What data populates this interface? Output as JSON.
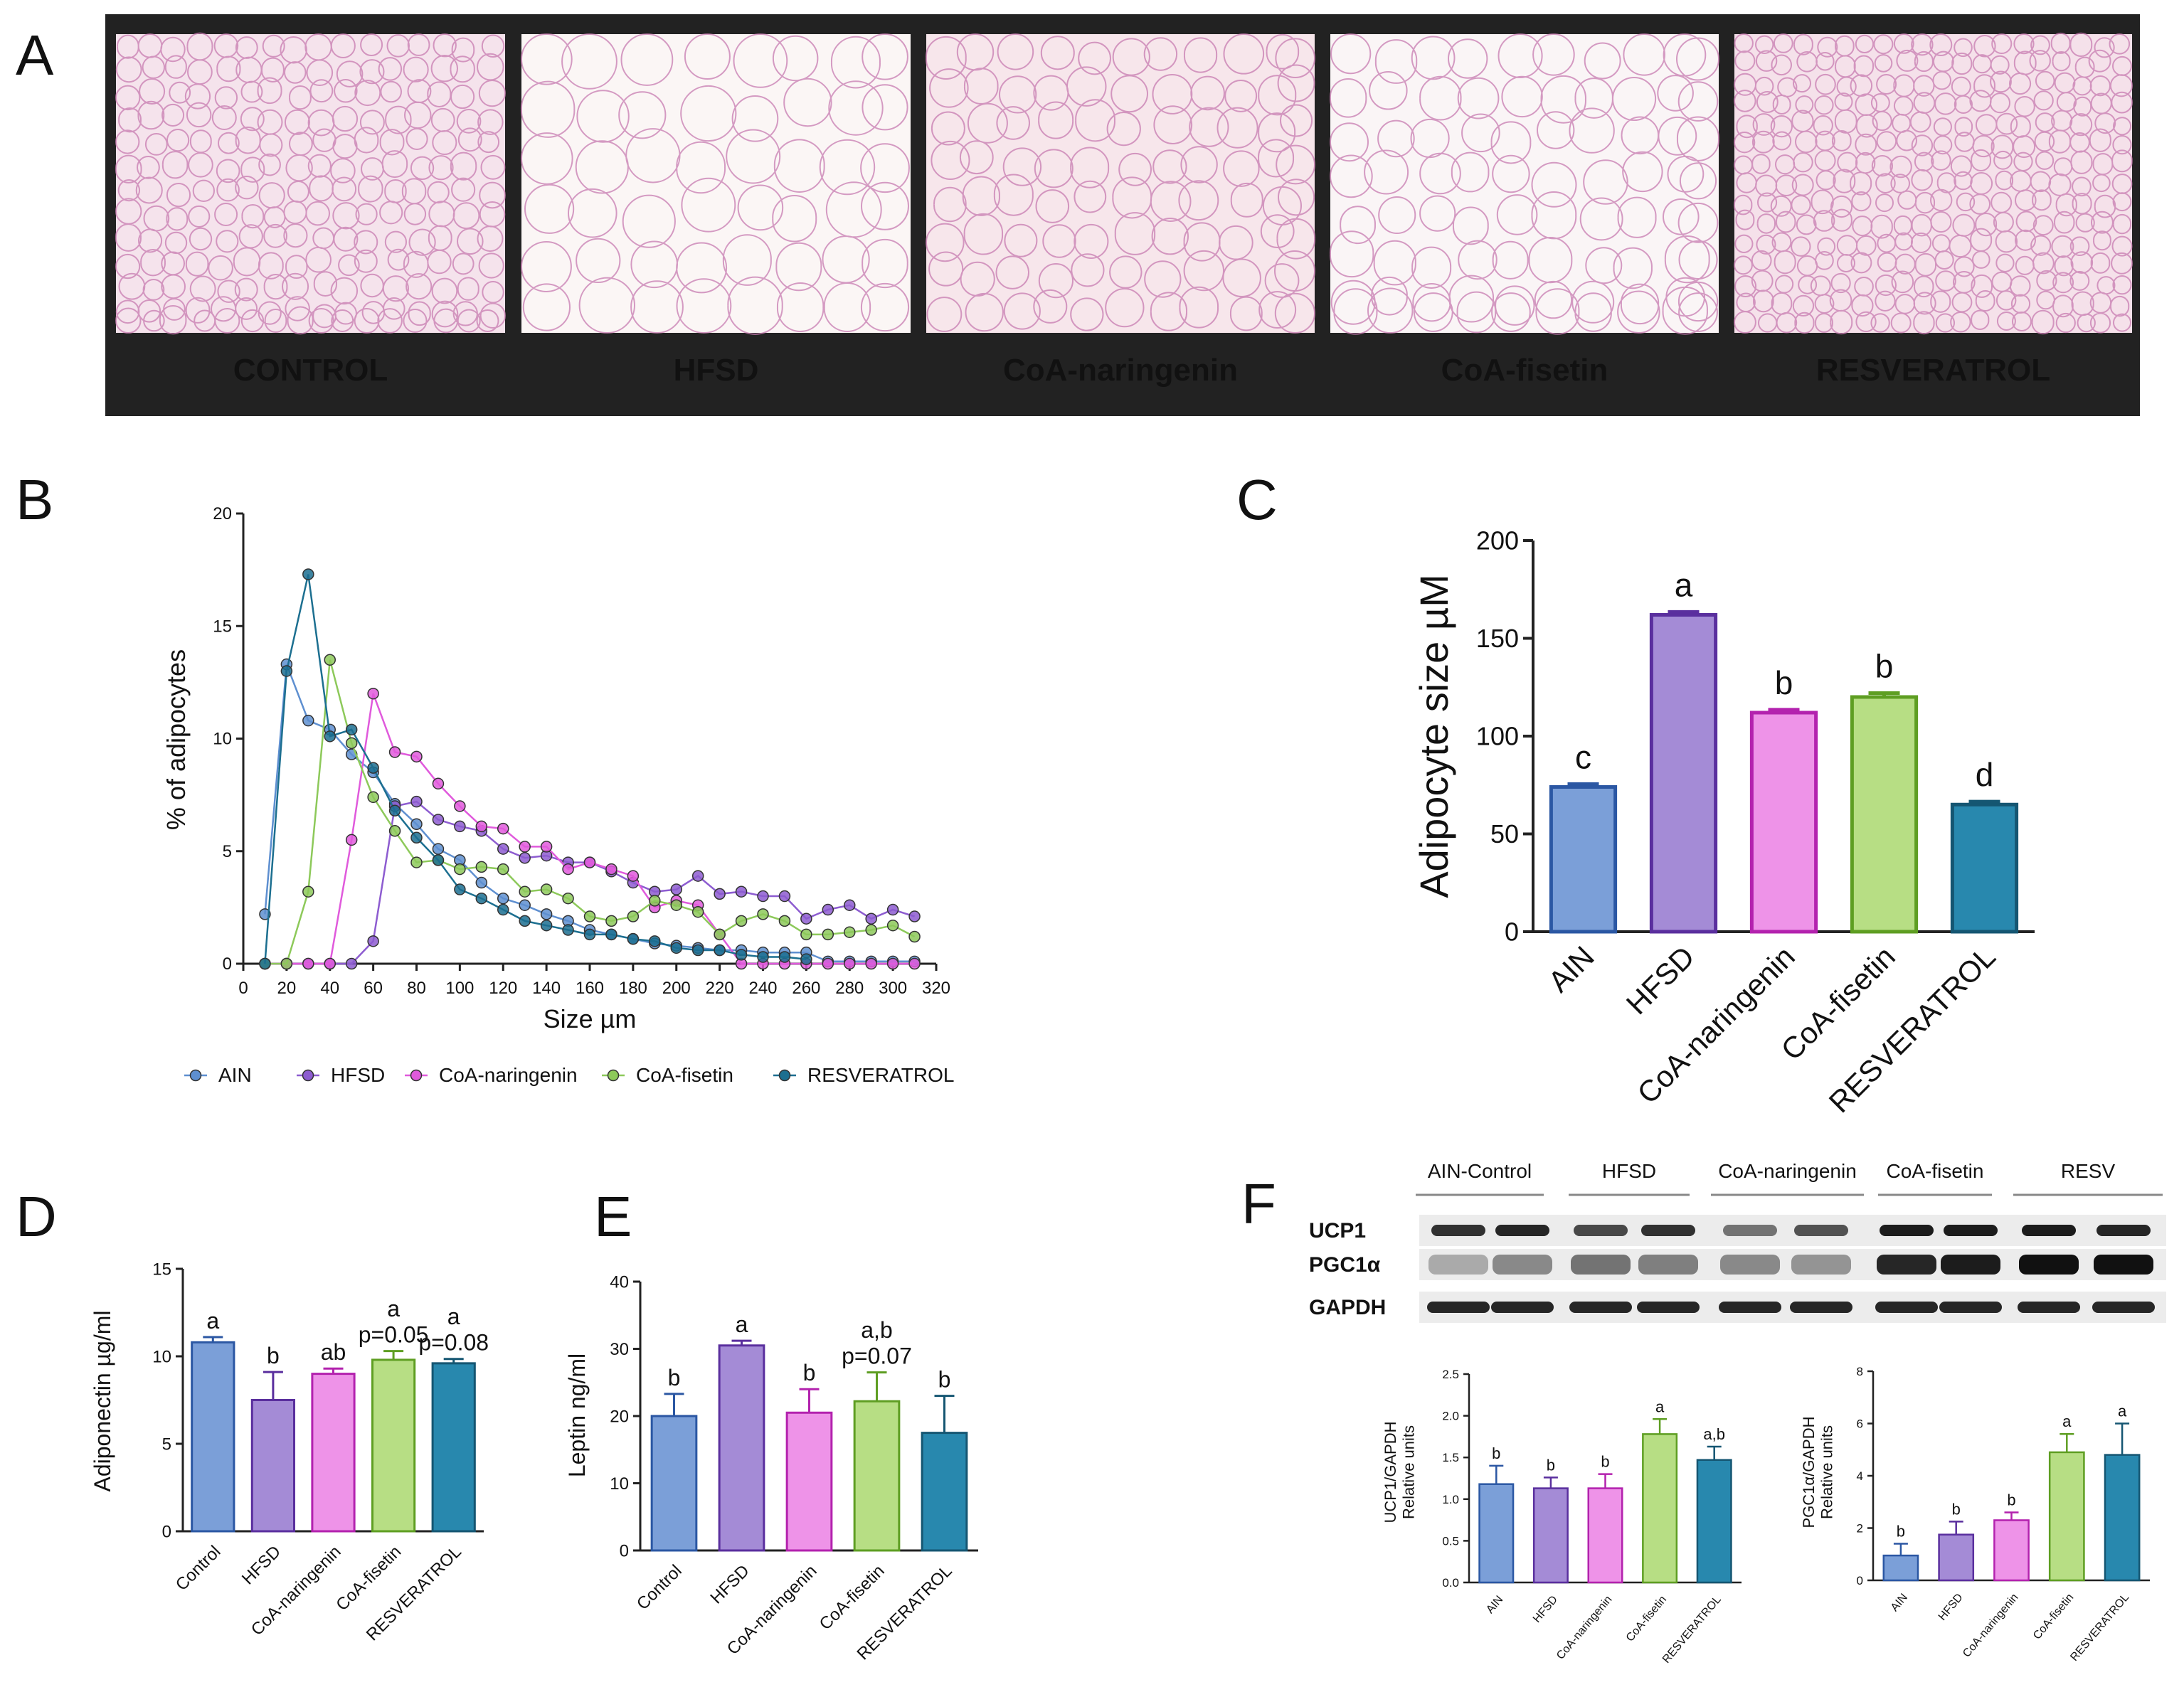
{
  "colors": {
    "AIN": "#7B9FD8",
    "AIN_edge": "#2B57A3",
    "HFSD": "#A48BD6",
    "HFSD_edge": "#5A2F9E",
    "CoA-naringenin": "#EE93E8",
    "CoA-naringenin_edge": "#B322AE",
    "CoA-fisetin": "#B7DE84",
    "CoA-fisetin_edge": "#5E9E22",
    "RESVERATROL": "#2888AE",
    "RESVERATROL_edge": "#155672",
    "line_AIN": "#5E8FD0",
    "line_HFSD": "#8D5CD0",
    "line_CoA-naringenin": "#E05ADC",
    "line_CoA-fisetin": "#8DC95A",
    "line_RESVERATROL": "#1C6F90",
    "panel_A_bg": "#222222",
    "tissue": "#F4E2E8",
    "tissue_line": "#C77BB0"
  },
  "panel_labels": {
    "A": "A",
    "B": "B",
    "C": "C",
    "D": "D",
    "E": "E",
    "F": "F"
  },
  "panel_A": {
    "captions": [
      "CONTROL",
      "HFSD",
      "CoA-naringenin",
      "CoA-fisetin",
      "RESVERATROL"
    ]
  },
  "chart_data": [
    {
      "id": "B",
      "type": "line",
      "xlabel": "Size µm",
      "ylabel": "% of  adipocytes",
      "xlim": [
        0,
        320
      ],
      "ylim": [
        0,
        20
      ],
      "xticks": [
        0,
        20,
        40,
        60,
        80,
        100,
        120,
        140,
        160,
        180,
        200,
        220,
        240,
        260,
        280,
        300,
        320
      ],
      "yticks": [
        0,
        5,
        10,
        15,
        20
      ],
      "series": [
        {
          "name": "AIN",
          "x": [
            10,
            20,
            30,
            40,
            50,
            60,
            70,
            80,
            90,
            100,
            110,
            120,
            130,
            140,
            150,
            160,
            170,
            180,
            190,
            200,
            210,
            220,
            230,
            240,
            250,
            260,
            270,
            280,
            290,
            300,
            310
          ],
          "y": [
            2.2,
            13.3,
            10.8,
            10.4,
            9.3,
            8.5,
            7.1,
            6.2,
            5.1,
            4.6,
            3.6,
            2.9,
            2.6,
            2.2,
            1.9,
            1.5,
            1.3,
            1.1,
            0.9,
            0.8,
            0.7,
            0.6,
            0.6,
            0.5,
            0.5,
            0.5,
            0.1,
            0.1,
            0.1,
            0.1,
            0.1
          ]
        },
        {
          "name": "HFSD",
          "x": [
            10,
            20,
            30,
            40,
            50,
            60,
            70,
            80,
            90,
            100,
            110,
            120,
            130,
            140,
            150,
            160,
            170,
            180,
            190,
            200,
            210,
            220,
            230,
            240,
            250,
            260,
            270,
            280,
            290,
            300,
            310
          ],
          "y": [
            0,
            0,
            0,
            0,
            0,
            1.0,
            7.0,
            7.2,
            6.4,
            6.1,
            5.9,
            5.1,
            4.7,
            4.8,
            4.5,
            4.5,
            4.1,
            3.6,
            3.2,
            3.3,
            3.9,
            3.1,
            3.2,
            3.0,
            3.0,
            2.0,
            2.4,
            2.6,
            2.0,
            2.4,
            2.1
          ]
        },
        {
          "name": "CoA-naringenin",
          "x": [
            10,
            20,
            30,
            40,
            50,
            60,
            70,
            80,
            90,
            100,
            110,
            120,
            130,
            140,
            150,
            160,
            170,
            180,
            190,
            200,
            210,
            220,
            230,
            240,
            250,
            260,
            270,
            280,
            290,
            300,
            310
          ],
          "y": [
            0,
            0,
            0,
            0,
            5.5,
            12.0,
            9.4,
            9.2,
            8.0,
            7.0,
            6.1,
            6.0,
            5.2,
            5.2,
            4.2,
            4.5,
            4.2,
            3.9,
            2.5,
            2.8,
            2.6,
            1.3,
            0,
            0,
            0,
            0,
            0,
            0,
            0,
            0,
            0
          ]
        },
        {
          "name": "CoA-fisetin",
          "x": [
            10,
            20,
            30,
            40,
            50,
            60,
            70,
            80,
            90,
            100,
            110,
            120,
            130,
            140,
            150,
            160,
            170,
            180,
            190,
            200,
            210,
            220,
            230,
            240,
            250,
            260,
            270,
            280,
            290,
            300,
            310
          ],
          "y": [
            0,
            0,
            3.2,
            13.5,
            9.8,
            7.4,
            5.9,
            4.5,
            4.6,
            4.2,
            4.3,
            4.2,
            3.2,
            3.3,
            2.9,
            2.1,
            1.9,
            2.1,
            2.8,
            2.6,
            2.3,
            1.3,
            1.9,
            2.2,
            1.9,
            1.3,
            1.3,
            1.4,
            1.5,
            1.7,
            1.2
          ]
        },
        {
          "name": "RESVERATROL",
          "x": [
            10,
            20,
            30,
            40,
            50,
            60,
            70,
            80,
            90,
            100,
            110,
            120,
            130,
            140,
            150,
            160,
            170,
            180,
            190,
            200,
            210,
            220,
            230,
            240,
            250,
            260
          ],
          "y": [
            0,
            13.0,
            17.3,
            10.1,
            10.4,
            8.7,
            6.8,
            5.6,
            4.6,
            3.3,
            2.9,
            2.4,
            1.9,
            1.7,
            1.5,
            1.3,
            1.3,
            1.1,
            1.0,
            0.7,
            0.6,
            0.6,
            0.4,
            0.3,
            0.3,
            0.2
          ]
        }
      ],
      "legend_position": "bottom"
    },
    {
      "id": "C",
      "type": "bar",
      "categories": [
        "AIN",
        "HFSD",
        "CoA-naringenin",
        "CoA-fisetin",
        "RESVERATROL"
      ],
      "values": [
        74,
        162,
        112,
        120,
        65
      ],
      "errors": [
        1.5,
        1.5,
        1.5,
        2,
        1.5
      ],
      "letters": [
        "c",
        "a",
        "b",
        "b",
        "d"
      ],
      "ylabel": "Adipocyte size µM",
      "ylim": [
        0,
        200
      ],
      "yticks": [
        0,
        50,
        100,
        150,
        200
      ]
    },
    {
      "id": "D",
      "type": "bar",
      "categories": [
        "Control",
        "HFSD",
        "CoA-naringenin",
        "CoA-fisetin",
        "RESVERATROL"
      ],
      "values": [
        10.8,
        7.5,
        9.0,
        9.8,
        9.6
      ],
      "errors": [
        0.3,
        1.6,
        0.3,
        0.5,
        0.25
      ],
      "letters": [
        "a",
        "b",
        "ab",
        "a",
        "a"
      ],
      "pvalues": [
        "",
        "",
        "",
        "p=0.05",
        "p=0.08"
      ],
      "ylabel": "Adiponectin µg/ml",
      "ylim": [
        0,
        15
      ],
      "yticks": [
        0,
        5,
        10,
        15
      ]
    },
    {
      "id": "E",
      "type": "bar",
      "categories": [
        "Control",
        "HFSD",
        "CoA-naringenin",
        "CoA-fisetin",
        "RESVERATROL"
      ],
      "values": [
        20.0,
        30.5,
        20.5,
        22.2,
        17.5
      ],
      "errors": [
        3.3,
        0.7,
        3.5,
        4.3,
        5.5
      ],
      "letters": [
        "b",
        "a",
        "b",
        "a,b",
        "b"
      ],
      "pvalues": [
        "",
        "",
        "",
        "p=0.07",
        ""
      ],
      "ylabel": "Leptin ng/ml",
      "ylim": [
        0,
        40
      ],
      "yticks": [
        0,
        10,
        20,
        30,
        40
      ]
    },
    {
      "id": "F1",
      "type": "bar",
      "categories": [
        "AIN",
        "HFSD",
        "CoA-naringenin",
        "CoA-fisetin",
        "RESVERATROL"
      ],
      "values": [
        1.18,
        1.13,
        1.13,
        1.78,
        1.47
      ],
      "errors": [
        0.22,
        0.13,
        0.17,
        0.18,
        0.16
      ],
      "letters": [
        "b",
        "b",
        "b",
        "a",
        "a,b"
      ],
      "ylabel": [
        "UCP1/GAPDH",
        "Relative units"
      ],
      "ylim": [
        0,
        2.5
      ],
      "yticks": [
        "0.0",
        "0.5",
        "1.0",
        "1.5",
        "2.0",
        "2.5"
      ]
    },
    {
      "id": "F2",
      "type": "bar",
      "categories": [
        "AIN",
        "HFSD",
        "CoA-naringenin",
        "CoA-fisetin",
        "RESVERATROL"
      ],
      "values": [
        0.95,
        1.75,
        2.3,
        4.9,
        4.8
      ],
      "errors": [
        0.45,
        0.5,
        0.3,
        0.7,
        1.2
      ],
      "letters": [
        "b",
        "b",
        "b",
        "a",
        "a"
      ],
      "ylabel": [
        "PGC1α/GAPDH",
        "Relative units"
      ],
      "ylim": [
        0,
        8
      ],
      "yticks": [
        0,
        2,
        4,
        6,
        8
      ]
    }
  ],
  "western": {
    "lanes": [
      "AIN-Control",
      "HFSD",
      "CoA-naringenin",
      "CoA-fisetin",
      "RESV"
    ],
    "rows": [
      "UCP1",
      "PGC1α",
      "GAPDH"
    ]
  }
}
